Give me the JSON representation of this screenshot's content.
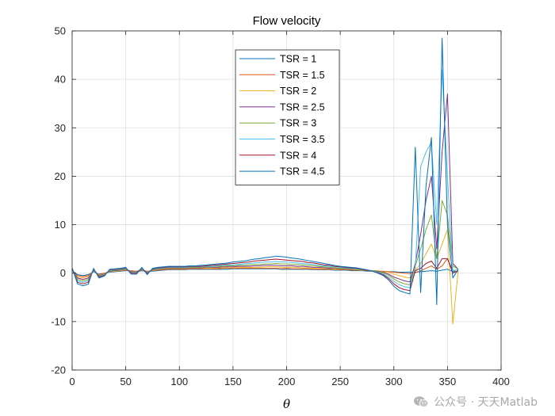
{
  "chart_data": {
    "type": "line",
    "title": "Flow velocity",
    "xlabel": "θ",
    "ylabel": "",
    "xlim": [
      0,
      400
    ],
    "ylim": [
      -20,
      50
    ],
    "xticks": [
      0,
      50,
      100,
      150,
      200,
      250,
      300,
      350,
      400
    ],
    "yticks": [
      -20,
      -10,
      0,
      10,
      20,
      30,
      40,
      50
    ],
    "grid": true,
    "legend_position": "top-center",
    "x": [
      0,
      5,
      10,
      15,
      20,
      25,
      30,
      35,
      40,
      45,
      50,
      55,
      60,
      65,
      70,
      75,
      80,
      85,
      90,
      95,
      100,
      105,
      110,
      115,
      120,
      125,
      130,
      135,
      140,
      145,
      150,
      155,
      160,
      165,
      170,
      175,
      180,
      185,
      190,
      195,
      200,
      205,
      210,
      215,
      220,
      225,
      230,
      235,
      240,
      245,
      250,
      255,
      260,
      265,
      270,
      275,
      280,
      285,
      290,
      295,
      300,
      305,
      310,
      315,
      320,
      325,
      330,
      335,
      340,
      345,
      350,
      355,
      360
    ],
    "series": [
      {
        "name": "TSR = 1",
        "color": "#0072BD",
        "values": [
          0.5,
          -0.3,
          -0.5,
          -0.3,
          0.3,
          -0.2,
          0,
          0.2,
          0.3,
          0.4,
          0.5,
          0.5,
          0.3,
          0.5,
          0.3,
          0.4,
          0.5,
          0.6,
          0.7,
          0.7,
          0.7,
          0.7,
          0.8,
          0.8,
          0.8,
          0.8,
          0.8,
          0.8,
          0.8,
          0.8,
          0.9,
          0.9,
          0.9,
          0.9,
          0.9,
          0.9,
          0.9,
          0.9,
          0.9,
          0.8,
          0.8,
          0.8,
          0.8,
          0.8,
          0.8,
          0.7,
          0.7,
          0.7,
          0.7,
          0.6,
          0.6,
          0.6,
          0.5,
          0.5,
          0.5,
          0.4,
          0.4,
          0.4,
          0.3,
          0.3,
          0.3,
          0.2,
          0.2,
          0.2,
          0.2,
          0.3,
          0.4,
          0.5,
          0.4,
          0.6,
          0.8,
          0.3,
          0.3
        ]
      },
      {
        "name": "TSR = 1.5",
        "color": "#D95319",
        "values": [
          0.5,
          -0.5,
          -0.7,
          -0.5,
          0.4,
          -0.3,
          0,
          0.3,
          0.4,
          0.5,
          0.6,
          0.5,
          0.4,
          0.6,
          0.4,
          0.5,
          0.6,
          0.7,
          0.8,
          0.8,
          0.8,
          0.8,
          0.9,
          0.9,
          0.9,
          0.9,
          0.9,
          0.9,
          1.0,
          1.0,
          1.0,
          1.0,
          1.0,
          1.0,
          1.0,
          1.0,
          1.0,
          1.0,
          1.0,
          0.9,
          1.0,
          0.9,
          0.9,
          0.9,
          0.9,
          0.8,
          0.8,
          0.8,
          0.8,
          0.7,
          0.7,
          0.7,
          0.6,
          0.6,
          0.6,
          0.5,
          0.5,
          0.4,
          0.4,
          0.3,
          0.2,
          0.1,
          0.0,
          -0.1,
          0.1,
          0.5,
          1.0,
          1.5,
          0.8,
          1.5,
          3.0,
          0.5,
          0.3
        ]
      },
      {
        "name": "TSR = 2",
        "color": "#EDB120",
        "values": [
          0.6,
          -0.8,
          -1.0,
          -0.7,
          0.5,
          -0.4,
          -0.1,
          0.3,
          0.4,
          0.5,
          0.7,
          0.4,
          0.4,
          0.7,
          0.3,
          0.5,
          0.7,
          0.8,
          0.9,
          0.9,
          0.9,
          0.9,
          1.0,
          1.0,
          1.0,
          1.0,
          1.0,
          1.1,
          1.1,
          1.1,
          1.1,
          1.2,
          1.2,
          1.2,
          1.2,
          1.2,
          1.3,
          1.3,
          1.3,
          1.2,
          1.2,
          1.2,
          1.2,
          1.1,
          1.1,
          1.0,
          1.0,
          0.9,
          0.9,
          0.8,
          0.8,
          0.8,
          0.7,
          0.7,
          0.6,
          0.6,
          0.5,
          0.5,
          0.3,
          0.2,
          -0.2,
          -0.5,
          -0.8,
          -1.0,
          0.5,
          2.0,
          4.0,
          6.0,
          3.0,
          6.0,
          9.0,
          -10.5,
          0.5
        ]
      },
      {
        "name": "TSR = 2.5",
        "color": "#7E2F8E",
        "values": [
          0.7,
          -1.0,
          -1.3,
          -1.0,
          0.6,
          -0.5,
          -0.2,
          0.4,
          0.5,
          0.6,
          0.8,
          0.3,
          0.3,
          0.8,
          0.2,
          0.6,
          0.8,
          0.9,
          1.0,
          1.0,
          1.0,
          1.0,
          1.1,
          1.1,
          1.1,
          1.2,
          1.2,
          1.2,
          1.3,
          1.3,
          1.3,
          1.4,
          1.4,
          1.4,
          1.5,
          1.5,
          1.6,
          1.6,
          1.6,
          1.5,
          1.5,
          1.5,
          1.4,
          1.4,
          1.3,
          1.2,
          1.2,
          1.1,
          1.0,
          1.0,
          0.9,
          0.9,
          0.8,
          0.8,
          0.7,
          0.6,
          0.5,
          0.4,
          0.2,
          -0.2,
          -0.8,
          -1.2,
          -1.6,
          -1.8,
          2.0,
          8.0,
          15.0,
          20.0,
          5.0,
          25.0,
          37.0,
          2.0,
          0.8
        ]
      },
      {
        "name": "TSR = 3",
        "color": "#77AC30",
        "values": [
          0.8,
          -1.3,
          -1.6,
          -1.3,
          0.7,
          -0.6,
          -0.3,
          0.5,
          0.6,
          0.7,
          0.9,
          0.2,
          0.2,
          0.9,
          0.1,
          0.7,
          0.9,
          1.0,
          1.1,
          1.1,
          1.1,
          1.1,
          1.2,
          1.2,
          1.2,
          1.3,
          1.3,
          1.4,
          1.4,
          1.5,
          1.5,
          1.6,
          1.6,
          1.7,
          1.8,
          1.8,
          1.9,
          1.9,
          2.0,
          1.9,
          1.9,
          1.8,
          1.8,
          1.7,
          1.6,
          1.5,
          1.4,
          1.3,
          1.2,
          1.1,
          1.0,
          1.0,
          0.9,
          0.8,
          0.7,
          0.6,
          0.5,
          0.3,
          0.1,
          -0.4,
          -1.2,
          -1.8,
          -2.2,
          -2.4,
          1.5,
          5.0,
          9.0,
          12.0,
          3.0,
          15.0,
          12.0,
          1.5,
          0.8
        ]
      },
      {
        "name": "TSR = 3.5",
        "color": "#4DBEEE",
        "values": [
          0.9,
          -1.6,
          -1.9,
          -1.6,
          0.8,
          -0.7,
          -0.4,
          0.6,
          0.7,
          0.8,
          1.0,
          0.1,
          0.1,
          1.0,
          0.0,
          0.8,
          1.0,
          1.1,
          1.2,
          1.2,
          1.2,
          1.2,
          1.3,
          1.3,
          1.3,
          1.4,
          1.4,
          1.5,
          1.6,
          1.7,
          1.7,
          1.8,
          1.9,
          2.0,
          2.1,
          2.2,
          2.3,
          2.3,
          2.4,
          2.3,
          2.3,
          2.2,
          2.1,
          2.0,
          1.9,
          1.8,
          1.6,
          1.5,
          1.4,
          1.3,
          1.2,
          1.1,
          1.0,
          0.9,
          0.8,
          0.6,
          0.4,
          0.2,
          -0.1,
          -0.8,
          -1.7,
          -2.4,
          -2.8,
          -3.0,
          1.0,
          22.0,
          25.0,
          27.0,
          10.0,
          42.0,
          20.0,
          0.5,
          0.8
        ]
      },
      {
        "name": "TSR = 4",
        "color": "#A2142F",
        "values": [
          1.0,
          -1.9,
          -2.2,
          -1.9,
          0.9,
          -0.8,
          -0.5,
          0.7,
          0.8,
          0.9,
          1.1,
          0.0,
          0.0,
          1.1,
          -0.1,
          0.9,
          1.1,
          1.2,
          1.3,
          1.3,
          1.3,
          1.3,
          1.4,
          1.4,
          1.4,
          1.5,
          1.6,
          1.7,
          1.8,
          1.9,
          2.0,
          2.1,
          2.2,
          2.3,
          2.5,
          2.6,
          2.7,
          2.8,
          2.9,
          2.8,
          2.7,
          2.6,
          2.5,
          2.4,
          2.2,
          2.1,
          1.9,
          1.7,
          1.6,
          1.4,
          1.3,
          1.2,
          1.1,
          1.0,
          0.8,
          0.6,
          0.4,
          0.1,
          -0.3,
          -1.1,
          -2.2,
          -3.0,
          -3.4,
          -3.6,
          0.5,
          1.0,
          2.0,
          2.5,
          1.0,
          3.0,
          3.0,
          0.0,
          0.5
        ]
      },
      {
        "name": "TSR = 4.5",
        "color": "#0072BD",
        "values": [
          1.1,
          -2.2,
          -2.6,
          -2.3,
          1.0,
          -1.0,
          -0.6,
          0.8,
          0.9,
          1.0,
          1.2,
          -0.2,
          -0.2,
          1.2,
          -0.3,
          1.0,
          1.2,
          1.3,
          1.4,
          1.4,
          1.4,
          1.4,
          1.5,
          1.5,
          1.6,
          1.7,
          1.8,
          1.9,
          2.0,
          2.1,
          2.3,
          2.4,
          2.5,
          2.7,
          2.9,
          3.0,
          3.2,
          3.3,
          3.5,
          3.4,
          3.3,
          3.1,
          3.0,
          2.8,
          2.6,
          2.4,
          2.2,
          2.0,
          1.8,
          1.6,
          1.4,
          1.3,
          1.2,
          1.1,
          0.9,
          0.7,
          0.4,
          0.0,
          -0.5,
          -1.4,
          -2.7,
          -3.6,
          -4.0,
          -4.3,
          26.0,
          -4.0,
          18.0,
          28.0,
          -6.5,
          48.5,
          10.0,
          -1.0,
          0.8
        ]
      }
    ]
  },
  "watermark": {
    "text": "公众号 · 天天Matlab",
    "icon": "wechat-icon"
  }
}
